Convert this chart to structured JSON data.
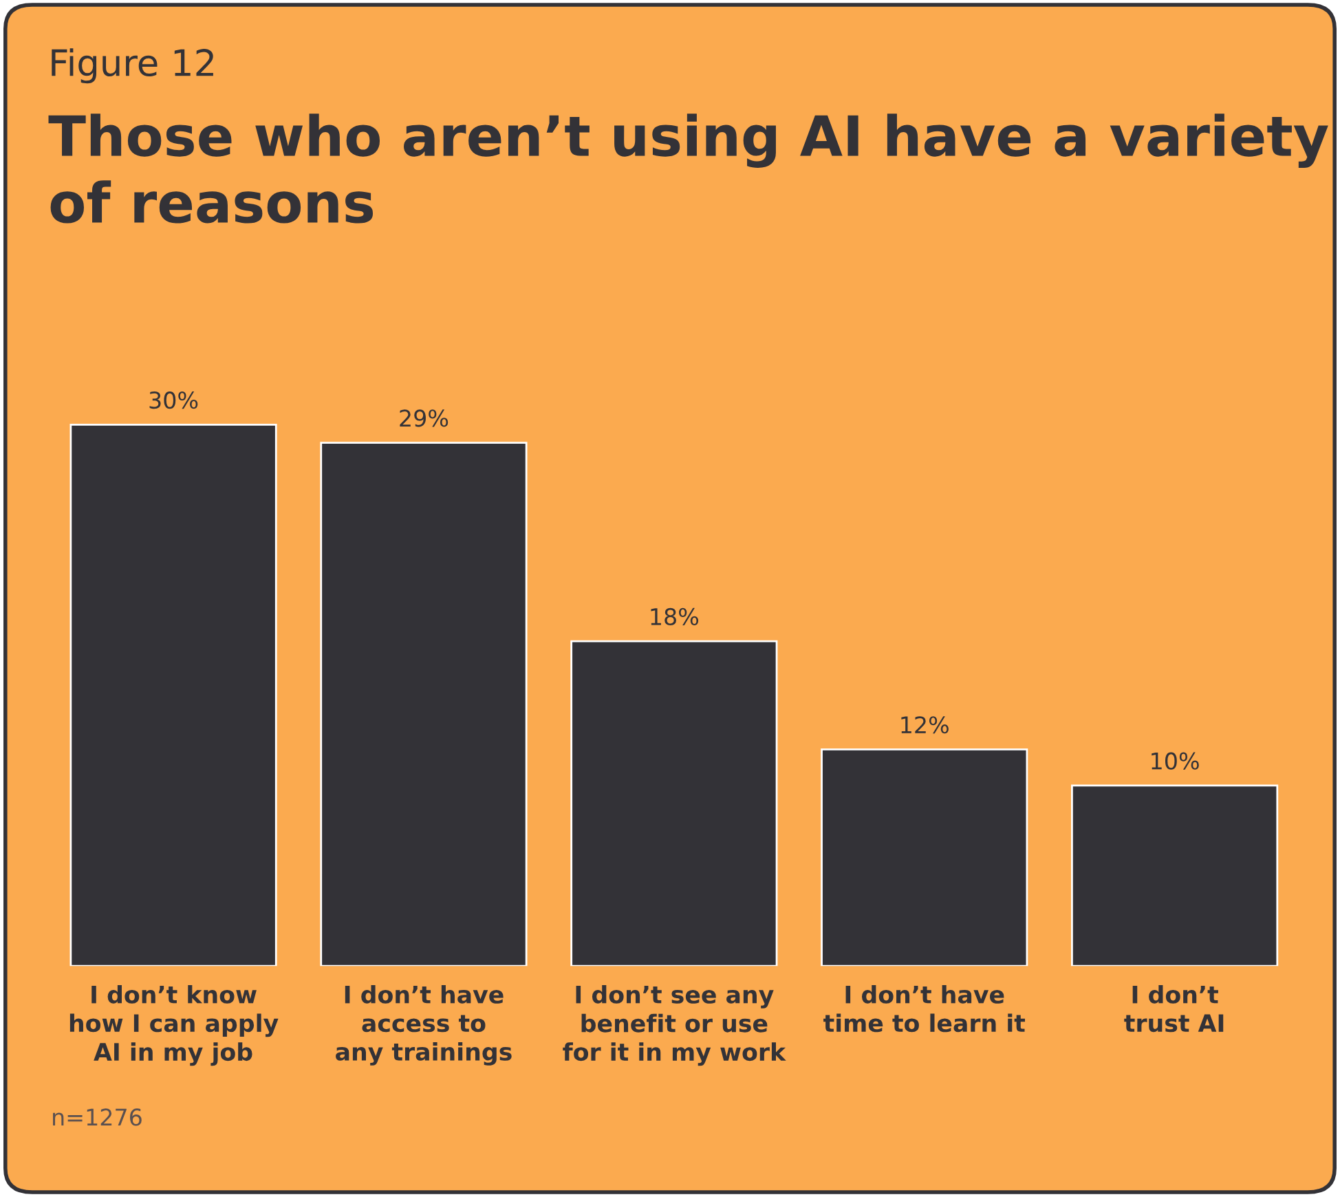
{
  "chart_data": {
    "type": "bar",
    "title": "Those who aren’t using AI have a variety of reasons",
    "categories": [
      "I don’t know\nhow I can apply\nAI in my job",
      "I don’t have\naccess to\nany trainings",
      "I don’t see any\nbenefit or use\nfor it in my work",
      "I don’t have\ntime to learn it",
      "I don’t\ntrust AI"
    ],
    "values": [
      30,
      29,
      18,
      12,
      10
    ],
    "value_labels": [
      "30%",
      "29%",
      "18%",
      "12%",
      "10%"
    ],
    "color": "#333237",
    "annotations": [
      "Figure 12",
      "n=1276"
    ]
  }
}
